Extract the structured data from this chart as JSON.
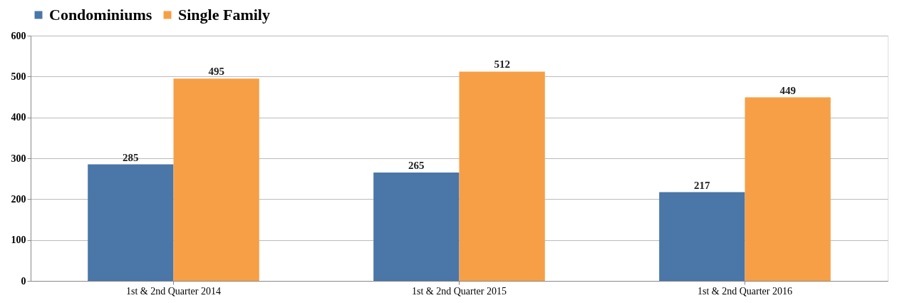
{
  "chart_data": {
    "type": "bar",
    "categories": [
      "1st & 2nd Quarter 2014",
      "1st & 2nd Quarter 2015",
      "1st & 2nd Quarter 2016"
    ],
    "series": [
      {
        "name": "Condominiums",
        "color": "#4a76a8",
        "values": [
          285,
          265,
          217
        ]
      },
      {
        "name": "Single Family",
        "color": "#f79f46",
        "values": [
          495,
          512,
          449
        ]
      }
    ],
    "ylim": [
      0,
      600
    ],
    "yticks": [
      0,
      100,
      200,
      300,
      400,
      500,
      600
    ],
    "grid": "y",
    "legend": "top",
    "data_labels": true
  }
}
